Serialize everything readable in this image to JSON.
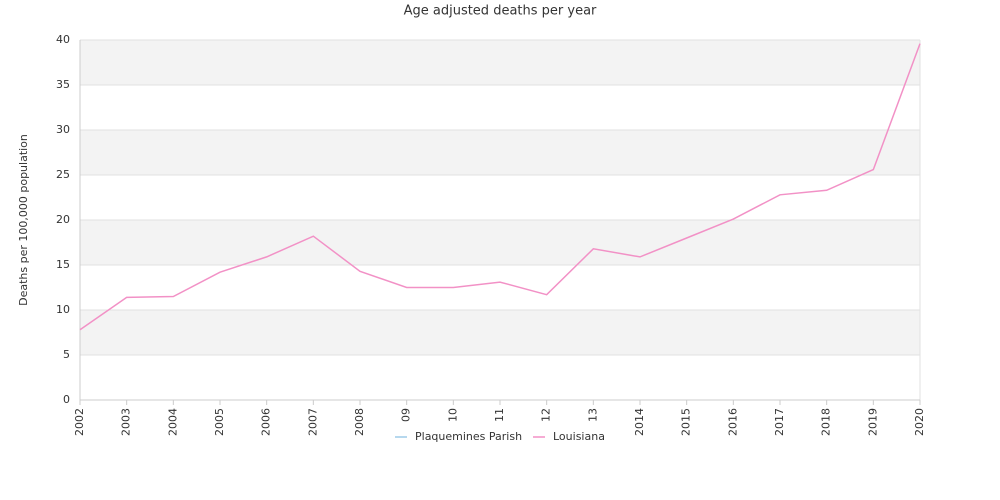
{
  "chart_data": {
    "type": "line",
    "title": "Age adjusted deaths per year",
    "y_label": "Deaths per 100,000 population",
    "categories": [
      "2002",
      "2003",
      "2004",
      "2005",
      "2006",
      "2007",
      "2008",
      "09",
      "10",
      "11",
      "12",
      "13",
      "2014",
      "2015",
      "2016",
      "2017",
      "2018",
      "2019",
      "2020"
    ],
    "series": [
      {
        "name": "Plaquemines Parish",
        "color": "#9ecae9",
        "values": [
          null,
          null,
          null,
          null,
          null,
          null,
          null,
          null,
          null,
          null,
          null,
          null,
          null,
          null,
          null,
          null,
          null,
          null,
          null
        ]
      },
      {
        "name": "Louisiana",
        "color": "#f291c6",
        "values": [
          7.8,
          11.4,
          11.5,
          14.2,
          15.9,
          18.2,
          14.3,
          12.5,
          12.5,
          13.1,
          11.7,
          16.8,
          15.9,
          18.0,
          20.1,
          22.8,
          23.3,
          25.6,
          39.6
        ]
      }
    ],
    "ylim": [
      0,
      40
    ],
    "yticks": [
      0,
      5,
      10,
      15,
      20,
      25,
      30,
      35,
      40
    ],
    "grid": true,
    "legend": "bottom"
  }
}
